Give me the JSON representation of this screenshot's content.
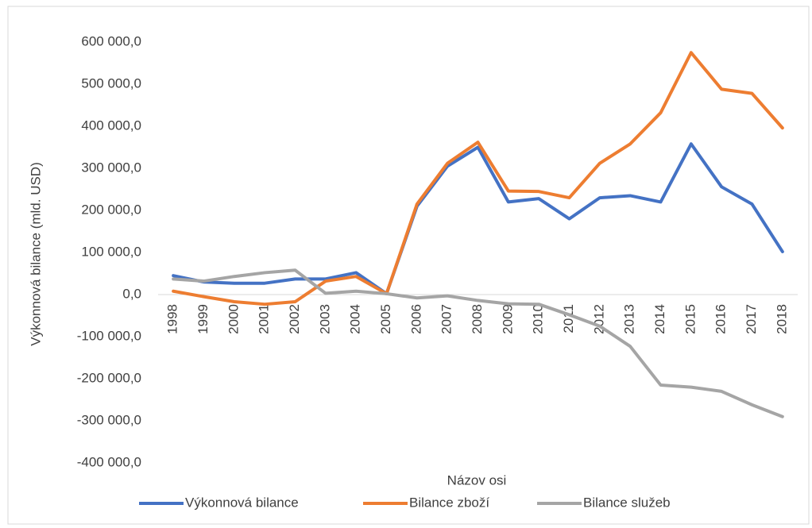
{
  "chart_data": {
    "type": "line",
    "x_label": "Názov osi",
    "y_label": "Výkonnová bilance  (mld. USD)",
    "categories": [
      "1998",
      "1999",
      "2000",
      "2001",
      "2002",
      "2003",
      "2004",
      "2005",
      "2006",
      "2007",
      "2008",
      "2009",
      "2010",
      "2011",
      "2012",
      "2013",
      "2014",
      "2015",
      "2016",
      "2017",
      "2018"
    ],
    "series": [
      {
        "name": "Výkonnová bilance",
        "color": "#4472c4",
        "values": [
          45000,
          30000,
          27000,
          27000,
          37000,
          37000,
          52000,
          2000,
          210000,
          305000,
          350000,
          220000,
          228000,
          180000,
          230000,
          235000,
          220000,
          358000,
          256000,
          215000,
          102000
        ]
      },
      {
        "name": "Bilance zboží",
        "color": "#ed7d31",
        "values": [
          8000,
          -5000,
          -17000,
          -23000,
          -17000,
          32000,
          43000,
          2000,
          215000,
          312000,
          362000,
          246000,
          245000,
          230000,
          312000,
          358000,
          432000,
          575000,
          488000,
          478000,
          396000
        ]
      },
      {
        "name": "Bilance služeb",
        "color": "#a5a5a5",
        "values": [
          37000,
          32000,
          43000,
          52000,
          58000,
          3000,
          8000,
          2000,
          -8000,
          -3000,
          -14000,
          -22000,
          -23000,
          -48000,
          -75000,
          -123000,
          -215000,
          -220000,
          -230000,
          -262000,
          -290000
        ]
      }
    ],
    "ylim": [
      -400000,
      600000
    ],
    "yticks": [
      {
        "value": -400000,
        "label": "-400 000,0"
      },
      {
        "value": -300000,
        "label": "-300 000,0"
      },
      {
        "value": -200000,
        "label": "-200 000,0"
      },
      {
        "value": -100000,
        "label": "-100 000,0"
      },
      {
        "value": 0,
        "label": "0,0"
      },
      {
        "value": 100000,
        "label": "100 000,0"
      },
      {
        "value": 200000,
        "label": "200 000,0"
      },
      {
        "value": 300000,
        "label": "300 000,0"
      },
      {
        "value": 400000,
        "label": "400 000,0"
      },
      {
        "value": 500000,
        "label": "500 000,0"
      },
      {
        "value": 600000,
        "label": "600 000,0"
      }
    ],
    "legend": "bottom"
  }
}
